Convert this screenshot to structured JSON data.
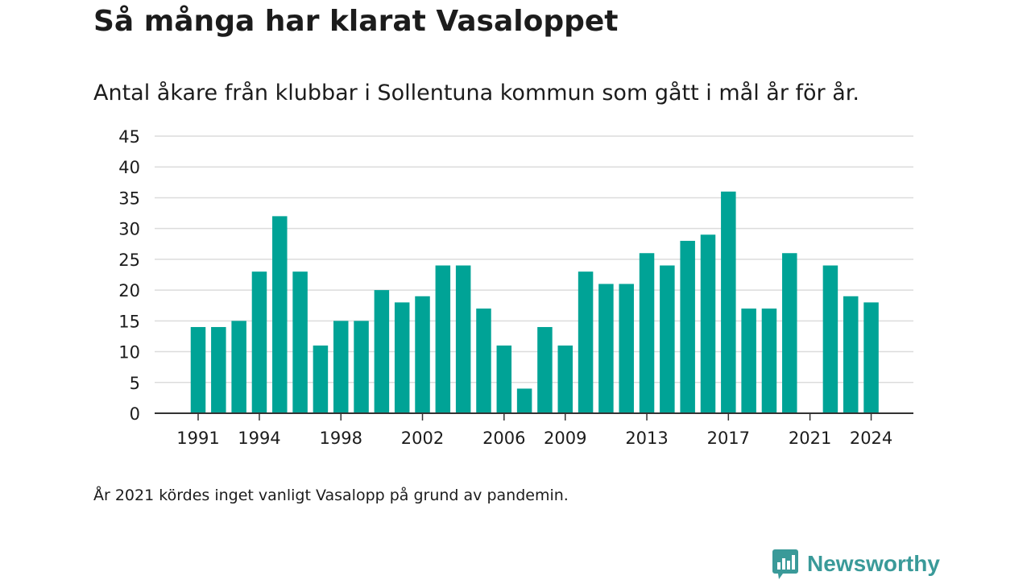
{
  "title": "Så många har klarat Vasaloppet",
  "subtitle": "Antal åkare från klubbar i Sollentuna kommun som gått i mål år för år.",
  "note": "År 2021 kördes inget vanligt Vasalopp på grund av pandemin.",
  "brand": {
    "name": "Newsworthy",
    "icon": "newsworthy-logo-icon",
    "color": "#3a9a99"
  },
  "colors": {
    "bar": "#00a396",
    "grid": "#dcdcdc",
    "axis": "#333333",
    "text": "#1c1c1c"
  },
  "chart_data": {
    "type": "bar",
    "categories": [
      "1991",
      "1992",
      "1993",
      "1994",
      "1995",
      "1996",
      "1997",
      "1998",
      "1999",
      "2000",
      "2001",
      "2002",
      "2003",
      "2004",
      "2005",
      "2006",
      "2007",
      "2008",
      "2009",
      "2010",
      "2011",
      "2012",
      "2013",
      "2014",
      "2015",
      "2016",
      "2017",
      "2018",
      "2019",
      "2020",
      "2021",
      "2022",
      "2023",
      "2024"
    ],
    "values": [
      14,
      14,
      15,
      23,
      32,
      23,
      11,
      15,
      15,
      20,
      18,
      19,
      24,
      24,
      17,
      11,
      4,
      14,
      11,
      23,
      21,
      21,
      26,
      24,
      28,
      29,
      36,
      17,
      17,
      26,
      0,
      24,
      19,
      18
    ],
    "x_tick_labels": [
      "1991",
      "1994",
      "1998",
      "2002",
      "2006",
      "2009",
      "2013",
      "2017",
      "2021",
      "2024"
    ],
    "y_ticks": [
      0,
      5,
      10,
      15,
      20,
      25,
      30,
      35,
      40,
      45
    ],
    "ylim": [
      0,
      45
    ],
    "grid": true,
    "legend": "none"
  }
}
